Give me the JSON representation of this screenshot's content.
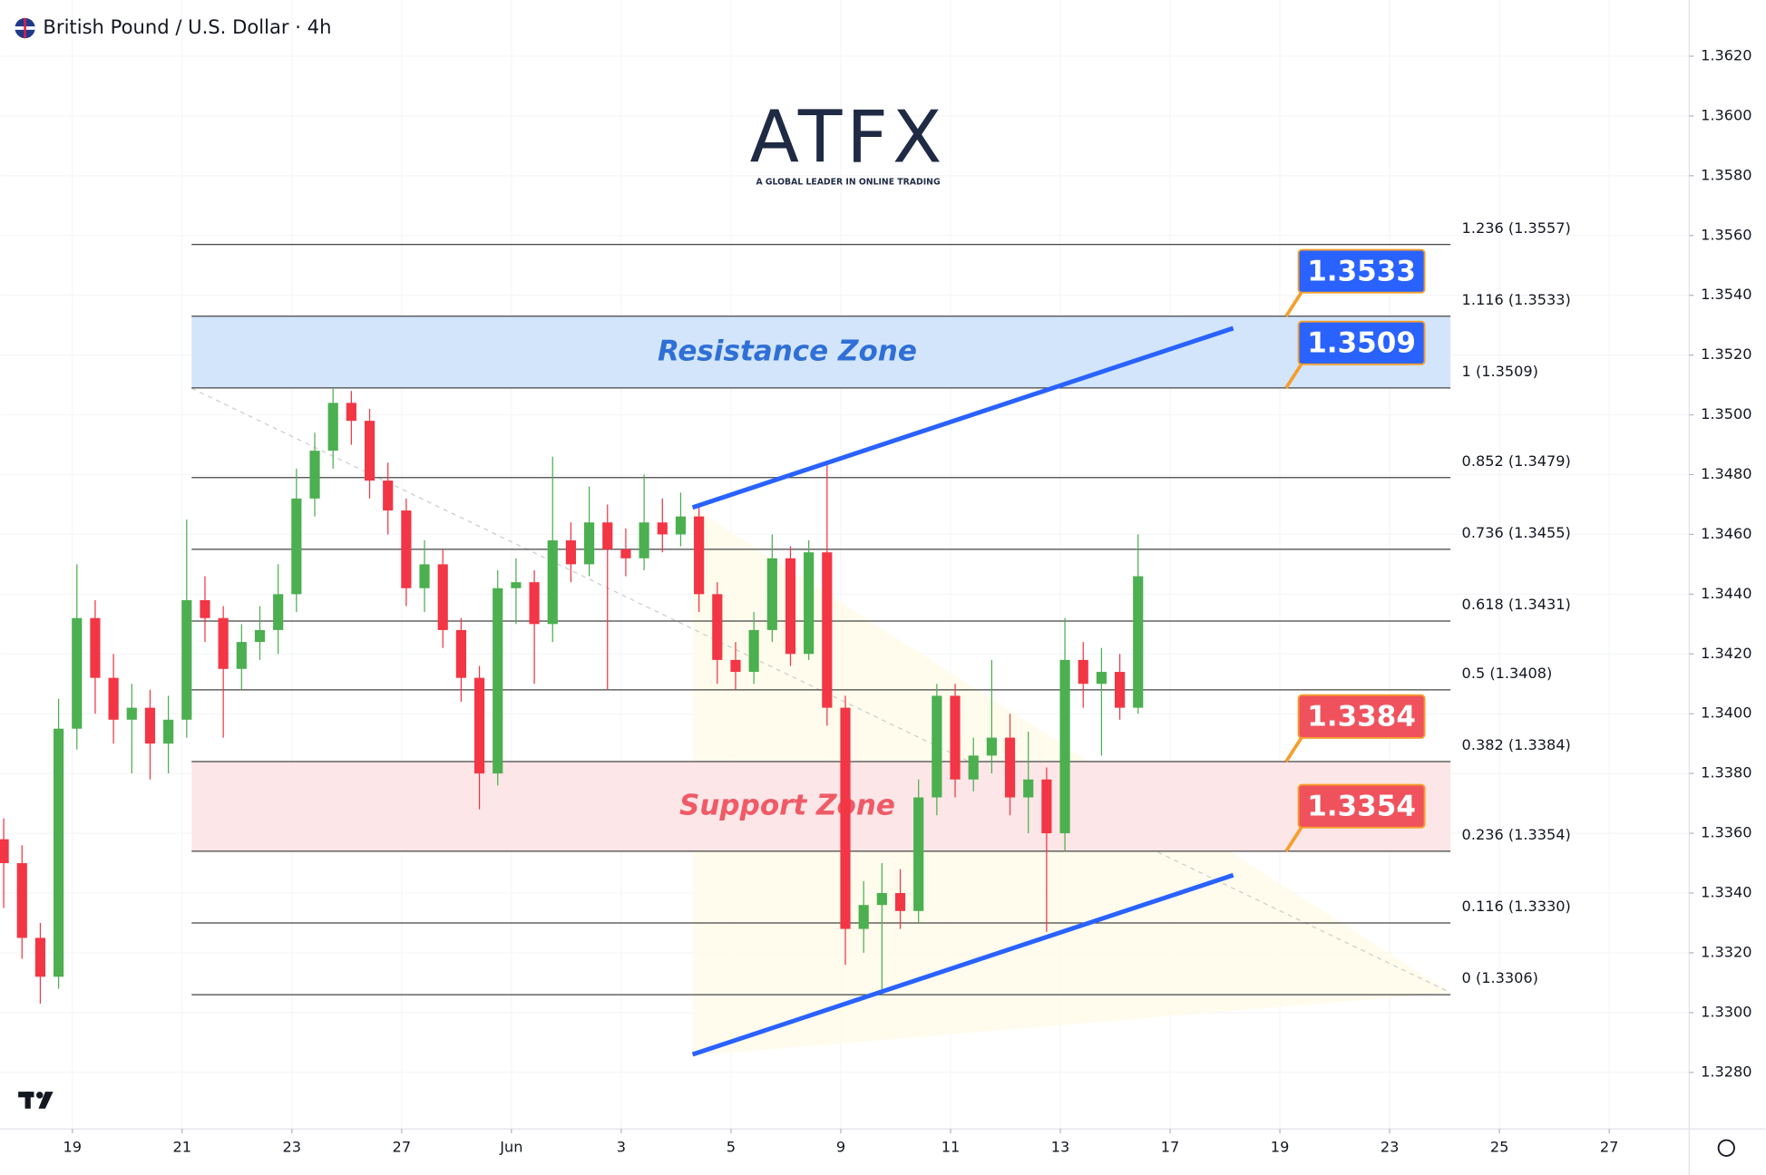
{
  "chart_data": {
    "type": "candlestick",
    "title": "British Pound / U.S. Dollar · 4h",
    "logo": {
      "name": "ATFX",
      "tagline": "A GLOBAL LEADER IN ONLINE TRADING"
    },
    "up_color": "#4caf50",
    "down_color": "#f23645",
    "grid": true,
    "xlim": [
      -7.88,
      176.74
    ],
    "ylim": [
      1.32611,
      1.36388
    ],
    "xticks": [
      {
        "value": 0,
        "label": "19"
      },
      {
        "value": 12,
        "label": "21"
      },
      {
        "value": 24,
        "label": "23"
      },
      {
        "value": 36,
        "label": "27"
      },
      {
        "value": 48,
        "label": "Jun"
      },
      {
        "value": 60,
        "label": "3"
      },
      {
        "value": 72,
        "label": "5"
      },
      {
        "value": 84,
        "label": "9"
      },
      {
        "value": 96,
        "label": "11"
      },
      {
        "value": 108,
        "label": "13"
      },
      {
        "value": 120,
        "label": "17"
      },
      {
        "value": 132,
        "label": "19"
      },
      {
        "value": 144,
        "label": "23"
      },
      {
        "value": 156,
        "label": "25"
      },
      {
        "value": 168,
        "label": "27"
      }
    ],
    "yticks": [
      {
        "value": 1.328,
        "label": "1.3280"
      },
      {
        "value": 1.33,
        "label": "1.3300"
      },
      {
        "value": 1.332,
        "label": "1.3320"
      },
      {
        "value": 1.334,
        "label": "1.3340"
      },
      {
        "value": 1.336,
        "label": "1.3360"
      },
      {
        "value": 1.338,
        "label": "1.3380"
      },
      {
        "value": 1.34,
        "label": "1.3400"
      },
      {
        "value": 1.342,
        "label": "1.3420"
      },
      {
        "value": 1.344,
        "label": "1.3440"
      },
      {
        "value": 1.346,
        "label": "1.3460"
      },
      {
        "value": 1.348,
        "label": "1.3480"
      },
      {
        "value": 1.35,
        "label": "1.3500"
      },
      {
        "value": 1.352,
        "label": "1.3520"
      },
      {
        "value": 1.354,
        "label": "1.3540"
      },
      {
        "value": 1.356,
        "label": "1.3560"
      },
      {
        "value": 1.358,
        "label": "1.3580"
      },
      {
        "value": 1.36,
        "label": "1.3600"
      },
      {
        "value": 1.362,
        "label": "1.3620"
      }
    ],
    "x": [
      -7.5,
      -5.5,
      -3.5,
      -1.5,
      0.5,
      2.5,
      4.5,
      6.5,
      8.5,
      10.5,
      12.5,
      14.5,
      16.5,
      18.5,
      20.5,
      22.5,
      24.5,
      26.5,
      28.5,
      30.5,
      32.5,
      34.5,
      36.5,
      38.5,
      40.5,
      42.5,
      44.5,
      46.5,
      48.5,
      50.5,
      52.5,
      54.5,
      56.5,
      58.5,
      60.5,
      62.5,
      64.5,
      66.5,
      68.5,
      70.5,
      72.5,
      74.5,
      76.5,
      78.5,
      80.5,
      82.5,
      84.5,
      86.5,
      88.5,
      90.5,
      92.5,
      94.5,
      96.5,
      98.5,
      100.5,
      102.5,
      104.5,
      106.5,
      108.5,
      110.5,
      112.5,
      114.5,
      116.5
    ],
    "open": [
      1.3358,
      1.335,
      1.3325,
      1.3312,
      1.3395,
      1.3432,
      1.3412,
      1.3398,
      1.3402,
      1.339,
      1.3398,
      1.3438,
      1.3432,
      1.3415,
      1.3424,
      1.3428,
      1.344,
      1.3472,
      1.3488,
      1.3504,
      1.3498,
      1.3478,
      1.3468,
      1.3442,
      1.345,
      1.3428,
      1.3412,
      1.338,
      1.3442,
      1.3444,
      1.343,
      1.3458,
      1.345,
      1.3464,
      1.3455,
      1.3452,
      1.3464,
      1.346,
      1.3466,
      1.344,
      1.3418,
      1.3414,
      1.3428,
      1.3452,
      1.342,
      1.3454,
      1.3402,
      1.3328,
      1.3336,
      1.334,
      1.3334,
      1.3372,
      1.3406,
      1.3378,
      1.3386,
      1.3392,
      1.3372,
      1.3378,
      1.336,
      1.3418,
      1.341,
      1.3414,
      1.3402
    ],
    "high": [
      1.3365,
      1.3356,
      1.333,
      1.3405,
      1.345,
      1.3438,
      1.342,
      1.341,
      1.3408,
      1.3406,
      1.3465,
      1.3446,
      1.3436,
      1.343,
      1.3436,
      1.345,
      1.3482,
      1.3494,
      1.3509,
      1.3508,
      1.3502,
      1.3484,
      1.3472,
      1.3458,
      1.3455,
      1.3432,
      1.3416,
      1.3448,
      1.3452,
      1.3448,
      1.3486,
      1.3464,
      1.3476,
      1.347,
      1.3462,
      1.348,
      1.3472,
      1.3474,
      1.347,
      1.3444,
      1.3424,
      1.3434,
      1.346,
      1.3456,
      1.3458,
      1.3484,
      1.3406,
      1.3344,
      1.335,
      1.3348,
      1.3378,
      1.341,
      1.341,
      1.3392,
      1.3418,
      1.34,
      1.3394,
      1.3382,
      1.3432,
      1.3424,
      1.3422,
      1.342,
      1.346
    ],
    "low": [
      1.3335,
      1.3318,
      1.3303,
      1.3308,
      1.3388,
      1.34,
      1.339,
      1.338,
      1.3378,
      1.338,
      1.3392,
      1.3424,
      1.3392,
      1.3408,
      1.3418,
      1.342,
      1.3434,
      1.3466,
      1.3482,
      1.349,
      1.3472,
      1.346,
      1.3436,
      1.3434,
      1.3422,
      1.3404,
      1.3368,
      1.3376,
      1.343,
      1.341,
      1.3424,
      1.3444,
      1.3446,
      1.3408,
      1.3446,
      1.3448,
      1.3454,
      1.3456,
      1.3434,
      1.341,
      1.3408,
      1.341,
      1.3424,
      1.3416,
      1.3418,
      1.3396,
      1.3316,
      1.332,
      1.3306,
      1.3328,
      1.333,
      1.3366,
      1.3372,
      1.3374,
      1.338,
      1.3366,
      1.336,
      1.3327,
      1.3354,
      1.3402,
      1.3386,
      1.3398,
      1.34
    ],
    "close": [
      1.335,
      1.3325,
      1.3312,
      1.3395,
      1.3432,
      1.3412,
      1.3398,
      1.3402,
      1.339,
      1.3398,
      1.3438,
      1.3432,
      1.3415,
      1.3424,
      1.3428,
      1.344,
      1.3472,
      1.3488,
      1.3504,
      1.3498,
      1.3478,
      1.3468,
      1.3442,
      1.345,
      1.3428,
      1.3412,
      1.338,
      1.3442,
      1.3444,
      1.343,
      1.3458,
      1.345,
      1.3464,
      1.3455,
      1.3452,
      1.3464,
      1.346,
      1.3466,
      1.344,
      1.3418,
      1.3414,
      1.3428,
      1.3452,
      1.342,
      1.3454,
      1.3402,
      1.3328,
      1.3336,
      1.334,
      1.3334,
      1.3372,
      1.3406,
      1.3378,
      1.3386,
      1.3392,
      1.3372,
      1.3378,
      1.336,
      1.3418,
      1.341,
      1.3414,
      1.3402,
      1.3446
    ],
    "fib_levels": [
      {
        "value": 1.3557,
        "label": "1.236 (1.3557)"
      },
      {
        "value": 1.3533,
        "label": "1.116 (1.3533)"
      },
      {
        "value": 1.3509,
        "label": "1 (1.3509)"
      },
      {
        "value": 1.3479,
        "label": "0.852 (1.3479)"
      },
      {
        "value": 1.3455,
        "label": "0.736 (1.3455)"
      },
      {
        "value": 1.3431,
        "label": "0.618 (1.3431)"
      },
      {
        "value": 1.3408,
        "label": "0.5 (1.3408)"
      },
      {
        "value": 1.3384,
        "label": "0.382 (1.3384)"
      },
      {
        "value": 1.3354,
        "label": "0.236 (1.3354)"
      },
      {
        "value": 1.333,
        "label": "0.116 (1.3330)"
      },
      {
        "value": 1.3306,
        "label": "0 (1.3306)"
      }
    ],
    "zones": [
      {
        "name": "Resistance Zone",
        "low": 1.3509,
        "high": 1.3533,
        "color": "#d3e5fb",
        "text_color": "#2f6fd6"
      },
      {
        "name": "Support Zone",
        "low": 1.3354,
        "high": 1.3384,
        "color": "#fde6e7",
        "text_color": "#ef5a66"
      }
    ],
    "price_tags": [
      {
        "value": 1.3533,
        "color": "#2962ff"
      },
      {
        "value": 1.3509,
        "color": "#2962ff"
      },
      {
        "value": 1.3384,
        "color": "#f0525d"
      },
      {
        "value": 1.3354,
        "color": "#f0525d"
      }
    ],
    "trendlines": [
      {
        "x": [
          67.8,
          126.9
        ],
        "y": [
          1.3469,
          1.3529
        ],
        "color": "#2962ff"
      },
      {
        "x": [
          67.8,
          126.9
        ],
        "y": [
          1.3286,
          1.3346
        ],
        "color": "#2962ff"
      }
    ]
  }
}
